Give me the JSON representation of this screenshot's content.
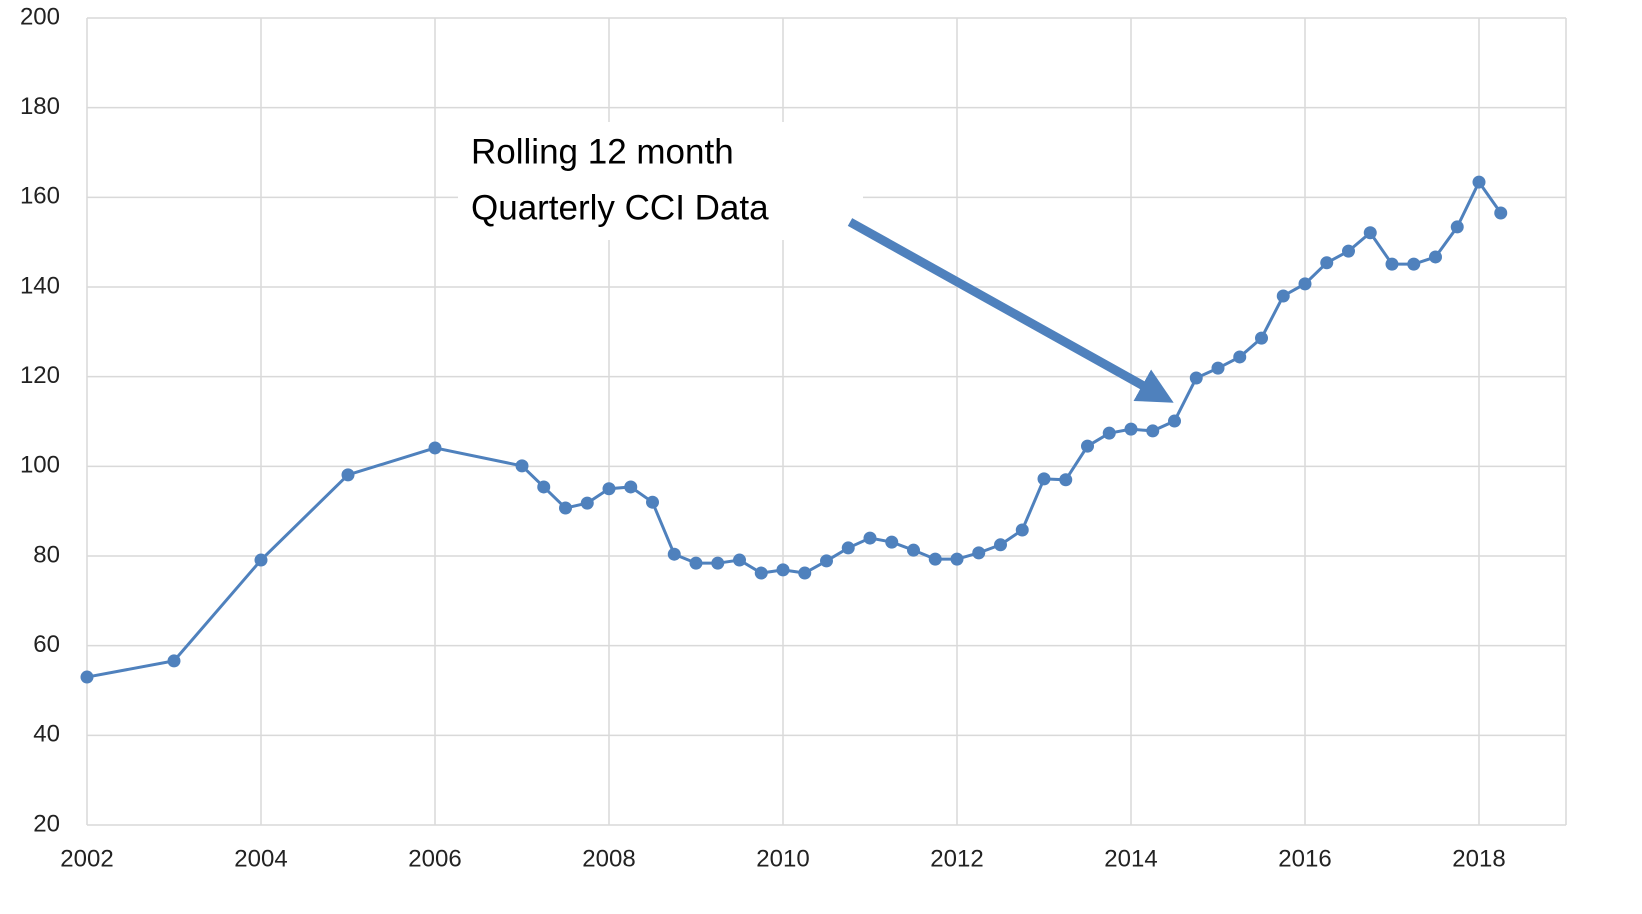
{
  "chart_data": {
    "type": "line",
    "annotation": [
      "Rolling 12 month",
      "Quarterly CCI Data"
    ],
    "x": [
      2002,
      2003,
      2004,
      2005,
      2006,
      2007,
      2007.25,
      2007.5,
      2007.75,
      2008,
      2008.25,
      2008.5,
      2008.75,
      2009,
      2009.25,
      2009.5,
      2009.75,
      2010,
      2010.25,
      2010.5,
      2010.75,
      2011,
      2011.25,
      2011.5,
      2011.75,
      2012,
      2012.25,
      2012.5,
      2012.75,
      2013,
      2013.25,
      2013.5,
      2013.75,
      2014,
      2014.25,
      2014.5,
      2014.75,
      2015,
      2015.25,
      2015.5,
      2015.75,
      2016,
      2016.25,
      2016.5,
      2016.75,
      2017,
      2017.25,
      2017.5,
      2017.75,
      2018,
      2018.25
    ],
    "values": [
      53.0,
      56.6,
      79.1,
      98.1,
      104.1,
      100.1,
      95.4,
      90.7,
      91.8,
      95.0,
      95.4,
      92.0,
      80.4,
      78.4,
      78.4,
      79.1,
      76.2,
      76.9,
      76.2,
      78.9,
      81.8,
      84.0,
      83.1,
      81.3,
      79.3,
      79.3,
      80.7,
      82.5,
      85.8,
      97.2,
      97.0,
      104.5,
      107.4,
      108.3,
      107.9,
      110.1,
      119.7,
      121.9,
      124.4,
      128.6,
      138.0,
      140.7,
      145.4,
      148.0,
      152.1,
      145.1,
      145.1,
      146.7,
      153.4,
      163.4,
      156.5
    ],
    "color": "#4f81bd",
    "xlim": [
      2002,
      2019
    ],
    "xticks": [
      2002,
      2004,
      2006,
      2008,
      2010,
      2012,
      2014,
      2016,
      2018
    ],
    "ylim": [
      20,
      200
    ],
    "yticks": [
      20,
      40,
      60,
      80,
      100,
      120,
      140,
      160,
      180,
      200
    ],
    "grid": true
  }
}
